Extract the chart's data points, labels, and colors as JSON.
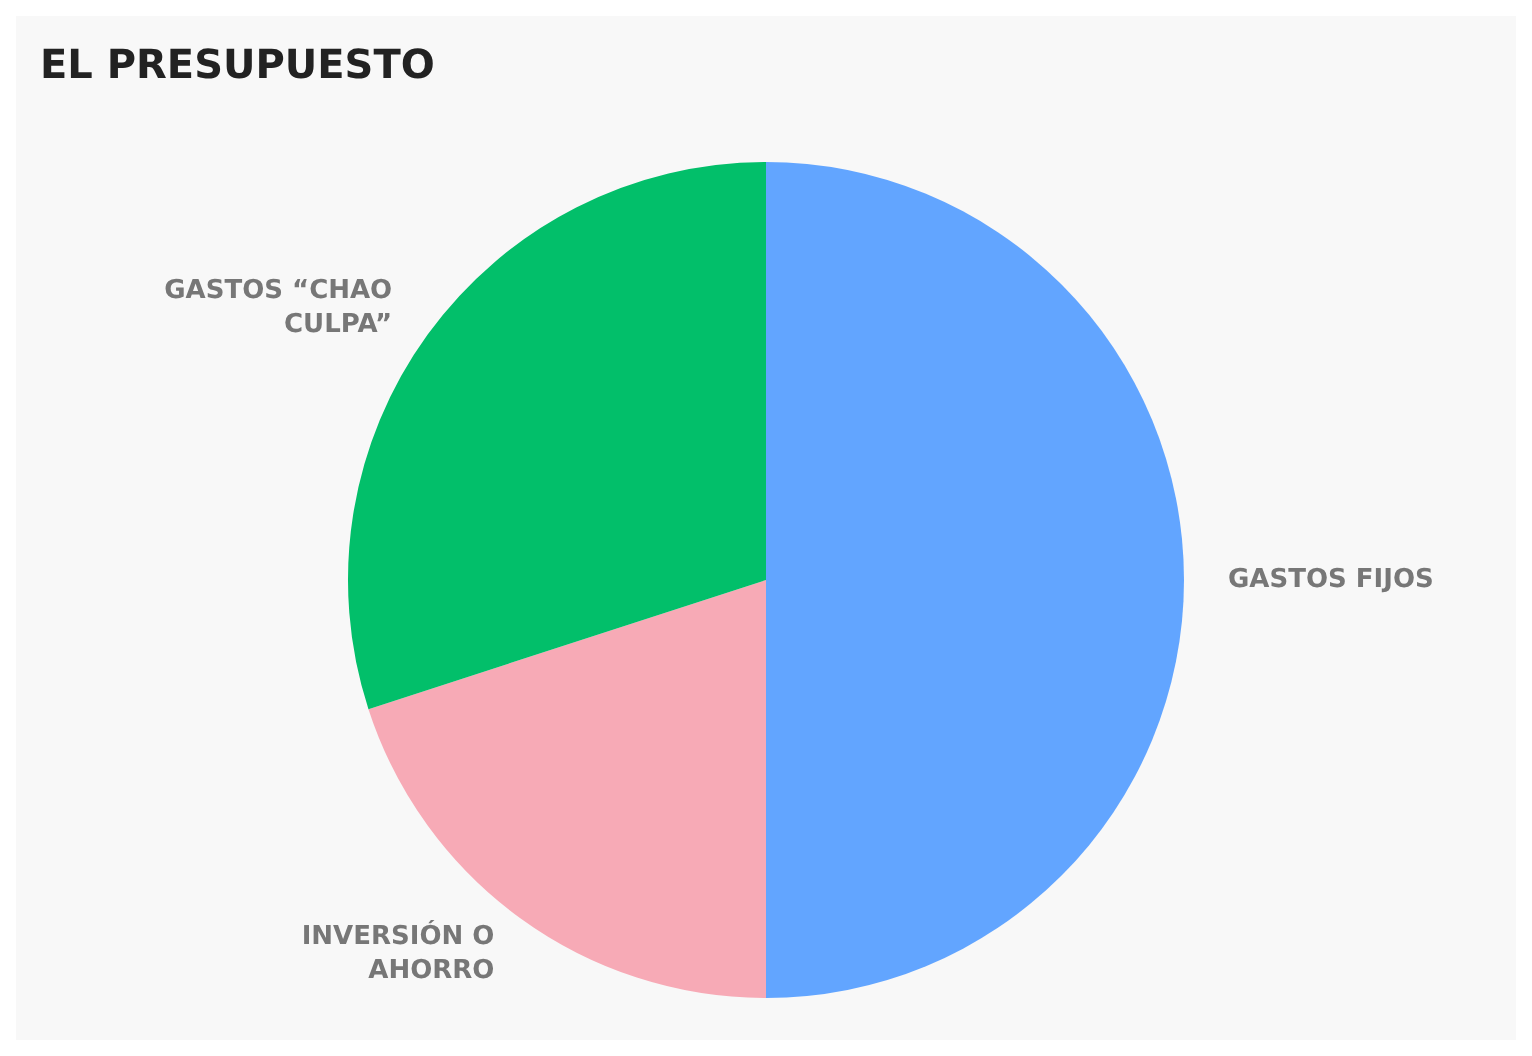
{
  "chart_data": {
    "type": "pie",
    "title": "EL PRESUPUESTO",
    "categories": [
      "GASTOS FIJOS",
      "INVERSIÓN O AHORRO",
      "GASTOS “CHAO CULPA”"
    ],
    "values": [
      50,
      20,
      30
    ],
    "colors": [
      "#62a5ff",
      "#f7aab6",
      "#02bf6a"
    ],
    "legend": false
  }
}
